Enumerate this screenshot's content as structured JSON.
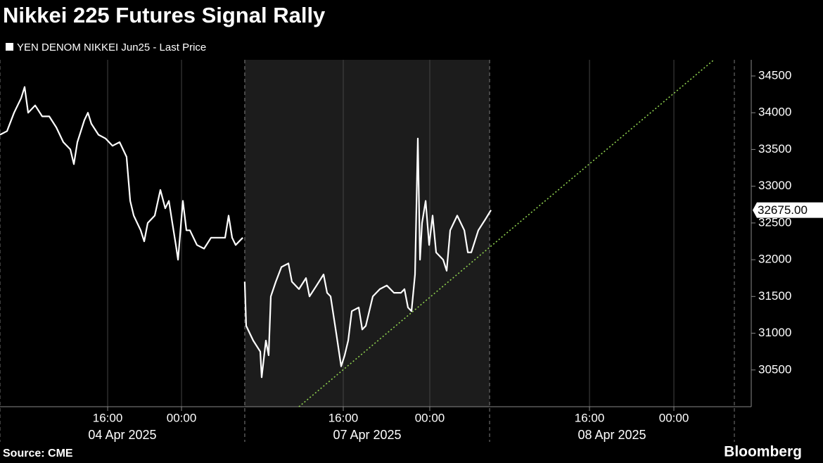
{
  "chart_data": {
    "type": "line",
    "title": "Nikkei 225 Futures Signal Rally",
    "source": "Source: CME",
    "brand": "Bloomberg",
    "series": [
      {
        "name": "YEN DENOM NIKKEI Jun25 - Last Price",
        "color": "#ffffff",
        "x": [
          0,
          0.76,
          1.52,
          2.29,
          2.67,
          3.05,
          3.81,
          4.57,
          5.33,
          6.1,
          6.86,
          7.62,
          8.0,
          8.38,
          9.14,
          9.52,
          9.9,
          10.67,
          11.43,
          12.19,
          12.95,
          13.71,
          14.1,
          14.48,
          15.24,
          15.62,
          16.0,
          16.76,
          17.37,
          17.9,
          18.29,
          18.67,
          19.05,
          19.28,
          19.81,
          20.19,
          20.57,
          21.33,
          22.1,
          22.86,
          23.62,
          24.38,
          24.76,
          25.14,
          25.52,
          26.29,
          26.4,
          26.51,
          26.67,
          27.43,
          28.19,
          28.34,
          28.8,
          29.1,
          29.33,
          29.87,
          30.48,
          31.24,
          31.62,
          32.38,
          33.14,
          33.52,
          34.29,
          35.05,
          35.43,
          35.81,
          36.42,
          36.95,
          37.33,
          37.71,
          38.1,
          38.86,
          39.24,
          39.62,
          40.38,
          41.14,
          41.9,
          42.67,
          43.43,
          43.81,
          44.19,
          44.57,
          44.95,
          45.26,
          45.49,
          45.71,
          46.1,
          46.48,
          46.86,
          47.24,
          48.0,
          48.38,
          48.76,
          49.52,
          50.29,
          50.67,
          51.05,
          51.81,
          52.57,
          53.18
        ],
        "values": [
          33700,
          33750,
          34000,
          34200,
          34350,
          34000,
          34100,
          33950,
          33950,
          33800,
          33600,
          33500,
          33300,
          33600,
          33900,
          34000,
          33850,
          33700,
          33650,
          33550,
          33600,
          33400,
          32800,
          32600,
          32400,
          32250,
          32500,
          32600,
          32950,
          32700,
          32800,
          32500,
          32200,
          32000,
          32800,
          32400,
          32400,
          32200,
          32150,
          32300,
          32300,
          32300,
          32600,
          32300,
          32200,
          32300,
          null,
          31700,
          31100,
          30900,
          30750,
          30400,
          30900,
          30700,
          31500,
          31700,
          31900,
          31950,
          31700,
          31600,
          31750,
          31500,
          31650,
          31800,
          31550,
          31500,
          31000,
          30550,
          30700,
          30900,
          31300,
          31350,
          31050,
          31100,
          31500,
          31600,
          31650,
          31550,
          31550,
          31600,
          31350,
          31300,
          31800,
          33650,
          32000,
          32500,
          32800,
          32200,
          32600,
          32100,
          32000,
          31850,
          32400,
          32600,
          32400,
          32100,
          32100,
          32400,
          32550,
          32675
        ]
      }
    ],
    "last_price": {
      "value": 32675,
      "label": "32675.00"
    },
    "trendline": {
      "color": "#8fd14f",
      "x": [
        32.38,
        77.33
      ],
      "y": [
        30000,
        34720
      ]
    },
    "xlim": [
      0,
      81.37
    ],
    "xticks": [
      {
        "value": 11.66,
        "label": "16:00"
      },
      {
        "value": 19.66,
        "label": "00:00"
      },
      {
        "value": 37.18,
        "label": "16:00"
      },
      {
        "value": 46.55,
        "label": "00:00"
      },
      {
        "value": 63.85,
        "label": "16:00"
      },
      {
        "value": 72.99,
        "label": "00:00"
      }
    ],
    "sessions": [
      {
        "label": "04 Apr 2025",
        "start": 0,
        "end": 26.51
      },
      {
        "label": "07 Apr 2025",
        "start": 26.51,
        "end": 53.03
      },
      {
        "label": "08 Apr 2025",
        "start": 53.03,
        "end": 79.54
      }
    ],
    "highlight_session": 1,
    "ylim": [
      30000,
      34720
    ],
    "yticks": [
      30500,
      31000,
      31500,
      32000,
      32500,
      33000,
      33500,
      34000,
      34500
    ]
  }
}
